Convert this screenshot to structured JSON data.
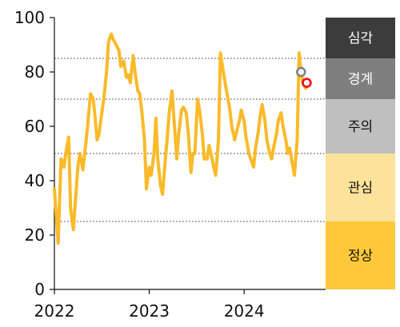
{
  "chart_data": {
    "type": "line",
    "title": "",
    "xlabel": "",
    "ylabel": "",
    "ylim": [
      0,
      100
    ],
    "yticks": [
      0,
      20,
      40,
      60,
      80,
      100
    ],
    "xlim": [
      2022.0,
      2024.8
    ],
    "xticks": [
      2022,
      2023,
      2024
    ],
    "xtick_labels": [
      "2022",
      "2023",
      "2024"
    ],
    "grid": "dotted horizontal lines at zone thresholds",
    "legend": "none",
    "thresholds": [
      25,
      50,
      70,
      85
    ],
    "zones": [
      {
        "label": "심각",
        "from": 85,
        "to": 100,
        "color": "#3c3c3c",
        "text_color": "#ffffff"
      },
      {
        "label": "경계",
        "from": 70,
        "to": 85,
        "color": "#7f7f7f",
        "text_color": "#ffffff"
      },
      {
        "label": "주의",
        "from": 50,
        "to": 70,
        "color": "#bfbfbf",
        "text_color": "#111111"
      },
      {
        "label": "관심",
        "from": 25,
        "to": 50,
        "color": "#fde29c",
        "text_color": "#111111"
      },
      {
        "label": "정상",
        "from": 0,
        "to": 25,
        "color": "#fdc93a",
        "text_color": "#111111"
      }
    ],
    "series": [
      {
        "color": "#fbba2a",
        "x": [
          2022.0,
          2022.04,
          2022.07,
          2022.1,
          2022.12,
          2022.15,
          2022.17,
          2022.2,
          2022.22,
          2022.25,
          2022.27,
          2022.3,
          2022.32,
          2022.35,
          2022.38,
          2022.41,
          2022.43,
          2022.45,
          2022.47,
          2022.5,
          2022.52,
          2022.55,
          2022.57,
          2022.6,
          2022.62,
          2022.65,
          2022.68,
          2022.7,
          2022.73,
          2022.76,
          2022.78,
          2022.8,
          2022.83,
          2022.85,
          2022.88,
          2022.9,
          2022.92,
          2022.95,
          2022.97,
          2023.0,
          2023.02,
          2023.05,
          2023.07,
          2023.09,
          2023.12,
          2023.14,
          2023.17,
          2023.19,
          2023.21,
          2023.24,
          2023.26,
          2023.29,
          2023.31,
          2023.34,
          2023.36,
          2023.39,
          2023.41,
          2023.44,
          2023.46,
          2023.48,
          2023.51,
          2023.53,
          2023.56,
          2023.58,
          2023.61,
          2023.63,
          2023.65,
          2023.68,
          2023.7,
          2023.73,
          2023.75,
          2023.78,
          2023.8,
          2023.82,
          2023.85,
          2023.87,
          2023.9,
          2023.92,
          2023.95,
          2023.97,
          2024.0,
          2024.02,
          2024.05,
          2024.07,
          2024.1,
          2024.12,
          2024.15,
          2024.17,
          2024.19,
          2024.22,
          2024.24,
          2024.27,
          2024.29,
          2024.31,
          2024.34,
          2024.36,
          2024.39,
          2024.41,
          2024.44,
          2024.46,
          2024.48,
          2024.51,
          2024.53,
          2024.56,
          2024.58,
          2024.6,
          2024.62,
          2024.65
        ],
        "values": [
          37,
          17,
          48,
          45,
          50,
          56,
          30,
          22,
          32,
          46,
          50,
          44,
          50,
          60,
          72,
          70,
          63,
          55,
          57,
          65,
          70,
          80,
          91,
          94,
          92,
          90,
          88,
          82,
          84,
          78,
          79,
          76,
          86,
          80,
          73,
          72,
          66,
          55,
          37,
          45,
          42,
          50,
          63,
          48,
          38,
          35,
          48,
          56,
          65,
          73,
          63,
          48,
          57,
          66,
          67,
          65,
          58,
          43,
          50,
          50,
          70,
          66,
          57,
          48,
          48,
          53,
          50,
          45,
          42,
          55,
          87,
          80,
          76,
          72,
          66,
          60,
          55,
          58,
          62,
          66,
          62,
          56,
          50,
          48,
          45,
          52,
          58,
          64,
          68,
          62,
          55,
          50,
          48,
          52,
          57,
          62,
          65,
          60,
          55,
          50,
          52,
          46,
          42,
          55,
          87,
          80,
          76,
          74
        ]
      }
    ],
    "markers": [
      {
        "x": 2024.6,
        "value": 80,
        "color": "#7f7f7f",
        "style": "hollow-circle"
      },
      {
        "x": 2024.66,
        "value": 76,
        "color": "#ff0000",
        "style": "hollow-circle"
      }
    ]
  }
}
